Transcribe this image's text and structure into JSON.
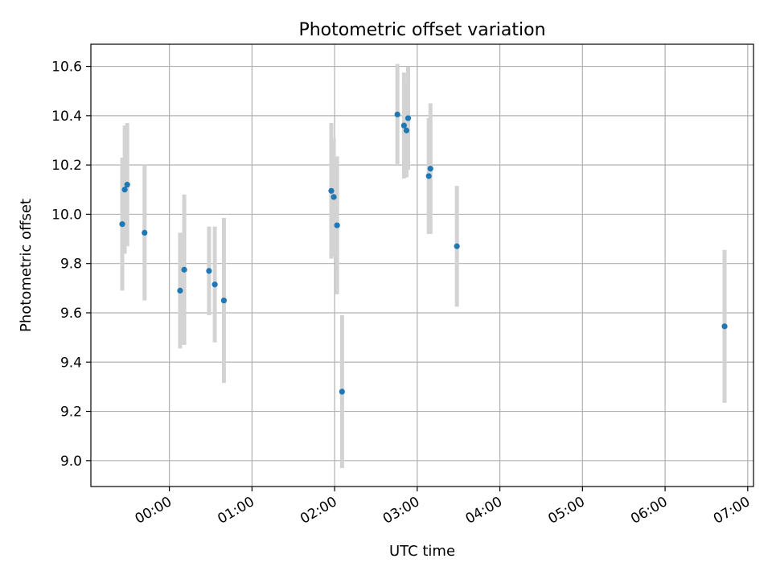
{
  "chart_data": {
    "type": "scatter",
    "title": "Photometric offset variation",
    "xlabel": "UTC time",
    "ylabel": "Photometric offset",
    "x_unit": "hours UTC",
    "xlim": [
      -0.95,
      7.07
    ],
    "ylim": [
      8.895,
      10.69
    ],
    "x_ticks": [
      {
        "value": 0,
        "label": "00:00"
      },
      {
        "value": 1,
        "label": "01:00"
      },
      {
        "value": 2,
        "label": "02:00"
      },
      {
        "value": 3,
        "label": "03:00"
      },
      {
        "value": 4,
        "label": "04:00"
      },
      {
        "value": 5,
        "label": "05:00"
      },
      {
        "value": 6,
        "label": "06:00"
      },
      {
        "value": 7,
        "label": "07:00"
      }
    ],
    "y_ticks": [
      {
        "value": 9.0,
        "label": "9.0"
      },
      {
        "value": 9.2,
        "label": "9.2"
      },
      {
        "value": 9.4,
        "label": "9.4"
      },
      {
        "value": 9.6,
        "label": "9.6"
      },
      {
        "value": 9.8,
        "label": "9.8"
      },
      {
        "value": 10.0,
        "label": "10.0"
      },
      {
        "value": 10.2,
        "label": "10.2"
      },
      {
        "value": 10.4,
        "label": "10.4"
      },
      {
        "value": 10.6,
        "label": "10.6"
      }
    ],
    "grid": true,
    "point_color": "#1f77b4",
    "errorbar_color": "#d3d3d3",
    "points": [
      {
        "x": -0.57,
        "y": 9.96,
        "err": 0.27
      },
      {
        "x": -0.54,
        "y": 10.1,
        "err": 0.26
      },
      {
        "x": -0.51,
        "y": 10.12,
        "err": 0.25
      },
      {
        "x": -0.3,
        "y": 9.925,
        "err": 0.275
      },
      {
        "x": 0.13,
        "y": 9.69,
        "err": 0.235
      },
      {
        "x": 0.18,
        "y": 9.775,
        "err": 0.305
      },
      {
        "x": 0.48,
        "y": 9.77,
        "err": 0.18
      },
      {
        "x": 0.55,
        "y": 9.715,
        "err": 0.235
      },
      {
        "x": 0.66,
        "y": 9.65,
        "err": 0.335
      },
      {
        "x": 1.96,
        "y": 10.095,
        "err": 0.275
      },
      {
        "x": 1.99,
        "y": 10.07,
        "err": 0.24
      },
      {
        "x": 2.03,
        "y": 9.955,
        "err": 0.28
      },
      {
        "x": 2.09,
        "y": 9.28,
        "err": 0.31
      },
      {
        "x": 2.76,
        "y": 10.405,
        "err": 0.205
      },
      {
        "x": 2.84,
        "y": 10.36,
        "err": 0.215
      },
      {
        "x": 2.87,
        "y": 10.34,
        "err": 0.19
      },
      {
        "x": 2.89,
        "y": 10.39,
        "err": 0.21
      },
      {
        "x": 3.14,
        "y": 10.155,
        "err": 0.235
      },
      {
        "x": 3.16,
        "y": 10.185,
        "err": 0.265
      },
      {
        "x": 3.48,
        "y": 9.87,
        "err": 0.245
      },
      {
        "x": 6.72,
        "y": 9.545,
        "err": 0.31
      }
    ]
  }
}
